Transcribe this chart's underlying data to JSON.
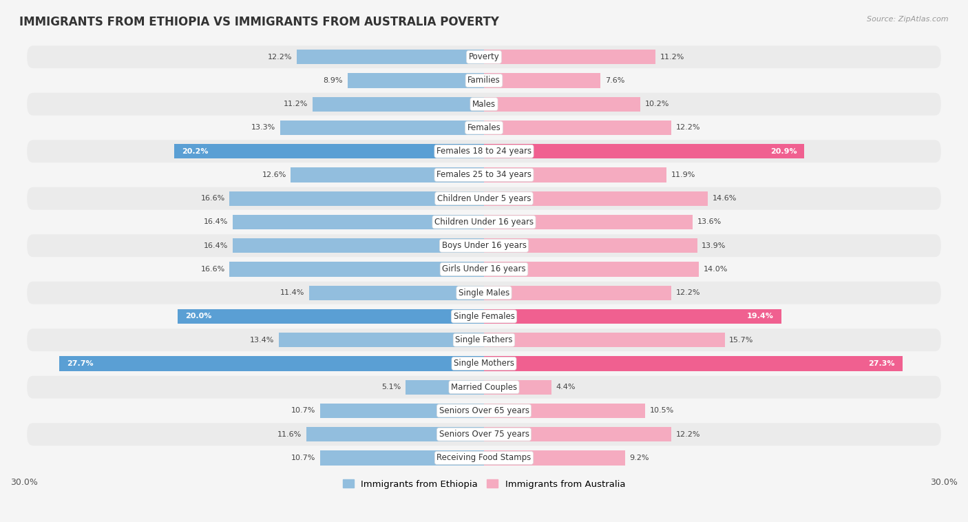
{
  "title": "IMMIGRANTS FROM ETHIOPIA VS IMMIGRANTS FROM AUSTRALIA POVERTY",
  "source": "Source: ZipAtlas.com",
  "categories": [
    "Poverty",
    "Families",
    "Males",
    "Females",
    "Females 18 to 24 years",
    "Females 25 to 34 years",
    "Children Under 5 years",
    "Children Under 16 years",
    "Boys Under 16 years",
    "Girls Under 16 years",
    "Single Males",
    "Single Females",
    "Single Fathers",
    "Single Mothers",
    "Married Couples",
    "Seniors Over 65 years",
    "Seniors Over 75 years",
    "Receiving Food Stamps"
  ],
  "ethiopia_values": [
    12.2,
    8.9,
    11.2,
    13.3,
    20.2,
    12.6,
    16.6,
    16.4,
    16.4,
    16.6,
    11.4,
    20.0,
    13.4,
    27.7,
    5.1,
    10.7,
    11.6,
    10.7
  ],
  "australia_values": [
    11.2,
    7.6,
    10.2,
    12.2,
    20.9,
    11.9,
    14.6,
    13.6,
    13.9,
    14.0,
    12.2,
    19.4,
    15.7,
    27.3,
    4.4,
    10.5,
    12.2,
    9.2
  ],
  "ethiopia_color": "#92bede",
  "australia_color": "#f5abc0",
  "ethiopia_highlight_color": "#5a9fd4",
  "australia_highlight_color": "#f06090",
  "highlight_rows": [
    4,
    11,
    13
  ],
  "background_color": "#f5f5f5",
  "row_even_color": "#ebebeb",
  "row_odd_color": "#f5f5f5",
  "xlim": 30.0,
  "legend_ethiopia": "Immigrants from Ethiopia",
  "legend_australia": "Immigrants from Australia",
  "title_fontsize": 12,
  "label_fontsize": 8.5,
  "value_fontsize": 8,
  "bar_height": 0.62
}
